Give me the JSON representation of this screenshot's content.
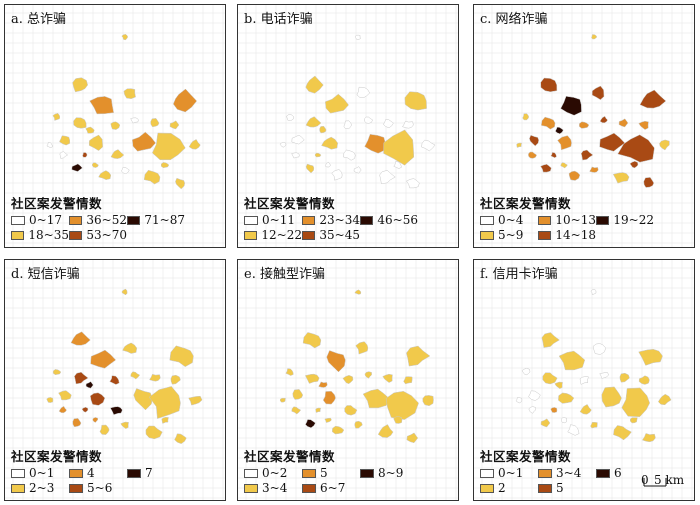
{
  "legend_title": "社区案发警情数",
  "colors": {
    "class1": "#ffffff",
    "class2": "#f1c94b",
    "class3": "#e3902c",
    "class4": "#a94a14",
    "class5": "#2a0a02"
  },
  "panels": [
    {
      "id": "a",
      "title": "a. 总诈骗",
      "legend": [
        {
          "label": "0~17",
          "class": "class1"
        },
        {
          "label": "36~52",
          "class": "class3"
        },
        {
          "label": "71~87",
          "class": "class5"
        },
        {
          "label": "18~35",
          "class": "class2"
        },
        {
          "label": "53~70",
          "class": "class4"
        }
      ]
    },
    {
      "id": "b",
      "title": "b. 电话诈骗",
      "legend": [
        {
          "label": "0~11",
          "class": "class1"
        },
        {
          "label": "23~34",
          "class": "class3"
        },
        {
          "label": "46~56",
          "class": "class5"
        },
        {
          "label": "12~22",
          "class": "class2"
        },
        {
          "label": "35~45",
          "class": "class4"
        }
      ]
    },
    {
      "id": "c",
      "title": "c. 网络诈骗",
      "legend": [
        {
          "label": "0~4",
          "class": "class1"
        },
        {
          "label": "10~13",
          "class": "class3"
        },
        {
          "label": "19~22",
          "class": "class5"
        },
        {
          "label": "5~9",
          "class": "class2"
        },
        {
          "label": "14~18",
          "class": "class4"
        }
      ]
    },
    {
      "id": "d",
      "title": "d. 短信诈骗",
      "legend": [
        {
          "label": "0~1",
          "class": "class1"
        },
        {
          "label": "4",
          "class": "class3"
        },
        {
          "label": "7",
          "class": "class5"
        },
        {
          "label": "2~3",
          "class": "class2"
        },
        {
          "label": "5~6",
          "class": "class4"
        }
      ]
    },
    {
      "id": "e",
      "title": "e. 接触型诈骗",
      "legend": [
        {
          "label": "0~2",
          "class": "class1"
        },
        {
          "label": "5",
          "class": "class3"
        },
        {
          "label": "8~9",
          "class": "class5"
        },
        {
          "label": "3~4",
          "class": "class2"
        },
        {
          "label": "6~7",
          "class": "class4"
        }
      ]
    },
    {
      "id": "f",
      "title": "f. 信用卡诈骗",
      "legend": [
        {
          "label": "0~1",
          "class": "class1"
        },
        {
          "label": "3~4",
          "class": "class3"
        },
        {
          "label": "6",
          "class": "class5"
        },
        {
          "label": "2",
          "class": "class2"
        },
        {
          "label": "5",
          "class": "class4"
        }
      ]
    }
  ],
  "scale_bar": {
    "start": "0",
    "end": "5 km"
  }
}
